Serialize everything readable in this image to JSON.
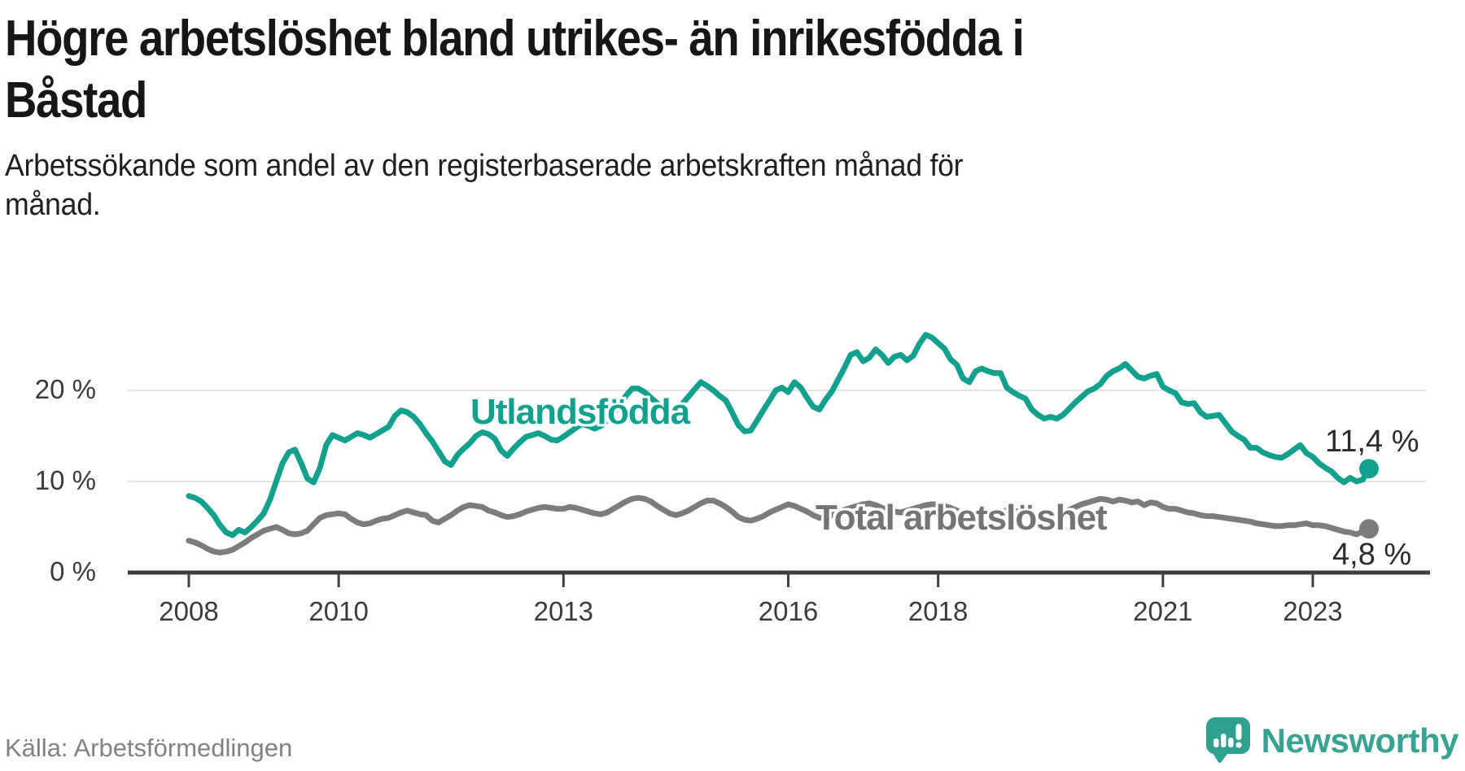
{
  "header": {
    "title_lines": [
      "Högre arbetslöshet bland utrikes- än inrikesfödda i",
      "Båstad"
    ],
    "subtitle_lines": [
      "Arbetssökande som andel av den registerbaserade arbetskraften månad för",
      "månad."
    ]
  },
  "footer": {
    "source": "Källa: Arbetsförmedlingen",
    "brand": "Newsworthy"
  },
  "colors": {
    "series_foreign": "#12a08f",
    "series_total": "#7c7c7c",
    "grid": "#e4e4e4",
    "axis": "#3f3f3f",
    "value_label": "#2b2b2b",
    "brand_teal": "#38a293"
  },
  "chart_data": {
    "type": "line",
    "title": "",
    "xlabel": "",
    "ylabel": "",
    "x_unit": "month",
    "x_start": "2008-01",
    "x_end": "2023-10",
    "ylim": [
      0,
      27.5
    ],
    "grid": "horizontal",
    "legend_position": "inline-labels",
    "x_ticks": [
      2008,
      2010,
      2013,
      2016,
      2018,
      2021,
      2023
    ],
    "y_ticks": [
      {
        "value": 0,
        "label": "0 %"
      },
      {
        "value": 10,
        "label": "10 %"
      },
      {
        "value": 20,
        "label": "20 %"
      }
    ],
    "series": [
      {
        "name": "Utlandsfödda",
        "color": "#12a08f",
        "end_label": "11,4 %",
        "end_value": 11.4,
        "values": [
          8.4,
          8.2,
          7.8,
          7.1,
          6.3,
          5.2,
          4.4,
          4.1,
          4.7,
          4.4,
          5.0,
          5.7,
          6.5,
          8.0,
          10.0,
          12.0,
          13.2,
          13.5,
          12.0,
          10.3,
          9.9,
          11.5,
          14.0,
          15.1,
          14.8,
          14.5,
          14.9,
          15.3,
          15.1,
          14.8,
          15.2,
          15.6,
          16.0,
          17.2,
          17.8,
          17.6,
          17.1,
          16.3,
          15.3,
          14.4,
          13.3,
          12.2,
          11.8,
          12.9,
          13.6,
          14.2,
          15.0,
          15.4,
          15.2,
          14.7,
          13.4,
          12.8,
          13.6,
          14.3,
          14.9,
          15.1,
          15.3,
          15.0,
          14.6,
          14.5,
          14.9,
          15.4,
          15.9,
          16.3,
          16.1,
          15.8,
          16.1,
          16.7,
          17.5,
          18.4,
          19.4,
          20.2,
          20.2,
          19.8,
          19.2,
          18.6,
          18.0,
          17.6,
          17.9,
          18.5,
          19.3,
          20.1,
          20.9,
          20.5,
          20.0,
          19.4,
          18.9,
          17.6,
          16.2,
          15.5,
          15.6,
          16.7,
          17.8,
          18.9,
          20.0,
          20.3,
          19.8,
          20.9,
          20.3,
          19.2,
          18.2,
          17.9,
          19.0,
          19.9,
          21.2,
          22.5,
          23.9,
          24.2,
          23.2,
          23.6,
          24.5,
          23.9,
          23.0,
          23.7,
          23.9,
          23.3,
          23.8,
          25.1,
          26.1,
          25.8,
          25.2,
          24.6,
          23.4,
          22.8,
          21.3,
          20.9,
          22.1,
          22.4,
          22.1,
          21.9,
          21.9,
          20.3,
          19.8,
          19.4,
          19.1,
          17.9,
          17.3,
          16.9,
          17.1,
          16.9,
          17.3,
          18.0,
          18.7,
          19.3,
          19.9,
          20.2,
          20.7,
          21.6,
          22.1,
          22.4,
          22.9,
          22.2,
          21.5,
          21.3,
          21.6,
          21.8,
          20.4,
          20.0,
          19.7,
          18.7,
          18.5,
          18.6,
          17.6,
          17.1,
          17.2,
          17.3,
          16.4,
          15.5,
          15.0,
          14.6,
          13.7,
          13.7,
          13.2,
          12.9,
          12.7,
          12.6,
          13.0,
          13.5,
          14.0,
          13.1,
          12.7,
          12.0,
          11.5,
          11.1,
          10.4,
          9.9,
          10.4,
          10.0,
          10.2,
          11.4
        ]
      },
      {
        "name": "Total arbetslöshet",
        "color": "#7c7c7c",
        "end_label": "4,8 %",
        "end_value": 4.8,
        "values": [
          3.5,
          3.3,
          3.0,
          2.6,
          2.3,
          2.2,
          2.3,
          2.5,
          2.9,
          3.3,
          3.8,
          4.2,
          4.6,
          4.8,
          5.0,
          4.7,
          4.3,
          4.2,
          4.3,
          4.6,
          5.3,
          6.0,
          6.3,
          6.4,
          6.5,
          6.4,
          5.9,
          5.5,
          5.3,
          5.4,
          5.7,
          5.9,
          6.0,
          6.3,
          6.6,
          6.8,
          6.6,
          6.4,
          6.3,
          5.7,
          5.5,
          5.9,
          6.3,
          6.8,
          7.2,
          7.4,
          7.3,
          7.2,
          6.8,
          6.6,
          6.3,
          6.1,
          6.2,
          6.4,
          6.7,
          6.9,
          7.1,
          7.2,
          7.1,
          7.0,
          7.0,
          7.2,
          7.1,
          6.9,
          6.7,
          6.5,
          6.4,
          6.6,
          7.0,
          7.4,
          7.8,
          8.1,
          8.2,
          8.1,
          7.8,
          7.3,
          6.9,
          6.5,
          6.3,
          6.5,
          6.8,
          7.2,
          7.6,
          7.9,
          7.9,
          7.6,
          7.2,
          6.7,
          6.1,
          5.8,
          5.7,
          5.9,
          6.2,
          6.6,
          6.9,
          7.2,
          7.5,
          7.3,
          7.0,
          6.7,
          6.3,
          6.0,
          6.1,
          6.3,
          6.6,
          6.9,
          7.1,
          7.3,
          7.5,
          7.6,
          7.4,
          7.1,
          6.9,
          6.7,
          6.6,
          6.8,
          7.0,
          7.2,
          7.4,
          7.5,
          7.5,
          7.3,
          7.1,
          6.8,
          6.5,
          6.3,
          6.2,
          6.4,
          6.5,
          6.6,
          6.7,
          6.8,
          6.8,
          6.7,
          6.5,
          6.3,
          6.2,
          6.1,
          6.2,
          6.4,
          6.6,
          6.9,
          7.2,
          7.5,
          7.7,
          7.9,
          8.1,
          8.0,
          7.8,
          8.0,
          7.9,
          7.7,
          7.8,
          7.4,
          7.7,
          7.6,
          7.2,
          7.0,
          7.0,
          6.8,
          6.6,
          6.5,
          6.3,
          6.2,
          6.2,
          6.1,
          6.0,
          5.9,
          5.8,
          5.7,
          5.6,
          5.4,
          5.3,
          5.2,
          5.1,
          5.1,
          5.2,
          5.2,
          5.3,
          5.4,
          5.2,
          5.2,
          5.1,
          4.9,
          4.7,
          4.5,
          4.4,
          4.2,
          4.5,
          4.8
        ]
      }
    ]
  }
}
